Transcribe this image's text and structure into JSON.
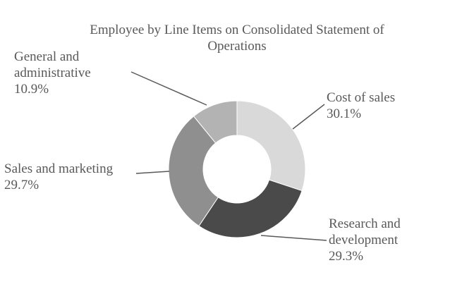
{
  "chart_data": {
    "type": "pie",
    "variant": "donut",
    "title_lines": [
      "Employee by Line Items on Consolidated Statement of",
      "Operations"
    ],
    "slices": [
      {
        "label_lines": [
          "Cost of sales"
        ],
        "value": 30.1,
        "value_label": "30.1%",
        "color": "#d9d9d9"
      },
      {
        "label_lines": [
          "Research and",
          "development"
        ],
        "value": 29.3,
        "value_label": "29.3%",
        "color": "#4a4a4a"
      },
      {
        "label_lines": [
          "Sales and marketing"
        ],
        "value": 29.7,
        "value_label": "29.7%",
        "color": "#8f8f8f"
      },
      {
        "label_lines": [
          "General and",
          "administrative"
        ],
        "value": 10.9,
        "value_label": "10.9%",
        "color": "#b3b3b3"
      }
    ],
    "legend": "none",
    "data_labels": "outside with leader lines"
  }
}
